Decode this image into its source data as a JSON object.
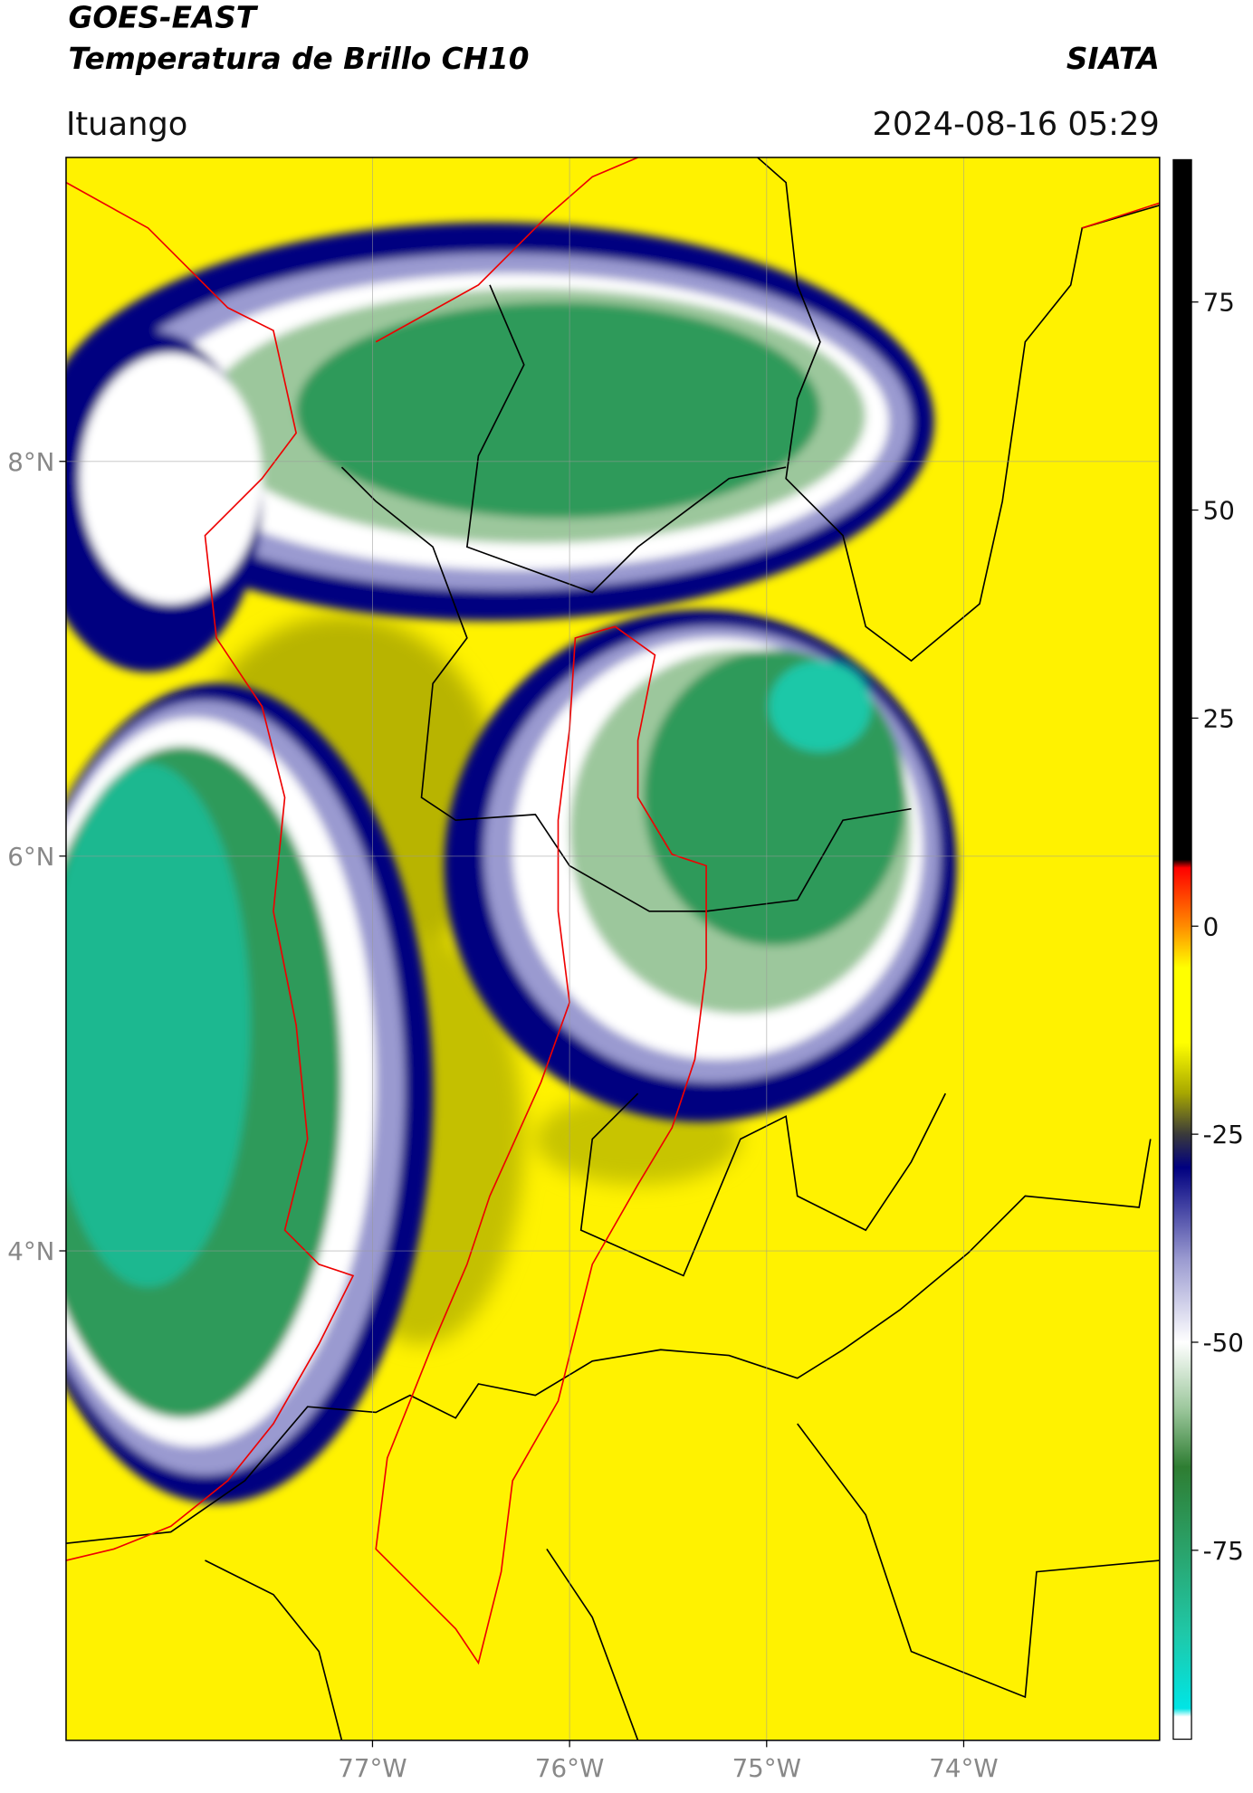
{
  "header": {
    "title": "GOES-EAST",
    "subtitle": "Temperatura de Brillo CH10",
    "brand": "SIATA",
    "location": "Ituango",
    "datetime": "2024-08-16 05:29"
  },
  "map": {
    "lon_range": [
      -78.555,
      -73.006
    ],
    "lat_range": [
      1.52,
      9.54
    ],
    "lon_ticks": [
      {
        "value": -77,
        "label": "77°W"
      },
      {
        "value": -76,
        "label": "76°W"
      },
      {
        "value": -75,
        "label": "75°W"
      },
      {
        "value": -74,
        "label": "74°W"
      }
    ],
    "lat_ticks": [
      {
        "value": 8,
        "label": "8°N"
      },
      {
        "value": 6,
        "label": "6°N"
      },
      {
        "value": 4,
        "label": "4°N"
      }
    ]
  },
  "colorbar": {
    "lim": [
      -97.7,
      92.1
    ],
    "ticks": [
      75,
      50,
      25,
      0,
      -25,
      -50,
      -75
    ],
    "colorscale": [
      [
        -95,
        "#ffffff"
      ],
      [
        -94,
        "#00e5e5"
      ],
      [
        -85,
        "#1fc8a8"
      ],
      [
        -75,
        "#2aa36b"
      ],
      [
        -65,
        "#2e7d32"
      ],
      [
        -58,
        "#9cc79c"
      ],
      [
        -50,
        "#ffffff"
      ],
      [
        -40,
        "#9a9ad0"
      ],
      [
        -29,
        "#000080"
      ],
      [
        -25,
        "#3a3a3a"
      ],
      [
        -20,
        "#a8a800"
      ],
      [
        -14,
        "#ffff00"
      ],
      [
        -5,
        "#ffff00"
      ],
      [
        0,
        "#ff8c00"
      ],
      [
        7,
        "#ff0000"
      ],
      [
        8,
        "#000000"
      ]
    ]
  }
}
